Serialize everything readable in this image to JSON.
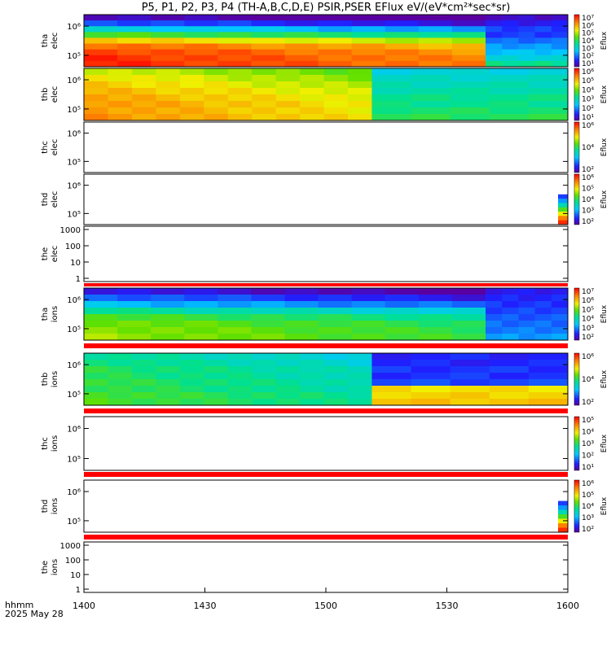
{
  "title": "P5, P1, P2, P3, P4 (TH-A,B,C,D,E) PSIR,PSER EFlux eV/(eV*cm²*sec*sr)",
  "bottom_label": {
    "line1": "hhmm",
    "line2": "2025 May 28"
  },
  "colors": {
    "red_bar": "#ff0000",
    "frame": "#000000"
  },
  "chart_data": {
    "type": "heatmap",
    "x_axis": {
      "range": [
        1400,
        1600
      ],
      "ticks": [
        "1400",
        "1430",
        "1500",
        "1530",
        "1600"
      ],
      "label": "hhmm"
    },
    "panels": [
      {
        "name": "tha-elec",
        "ylabel": [
          "tha",
          "elec"
        ],
        "yticks": [
          "10⁶",
          "10⁵"
        ],
        "colorbar": {
          "label": "Eflux",
          "ticks": [
            "10⁷",
            "10⁶",
            "10⁵",
            "10⁴",
            "10³",
            "10²",
            "10¹"
          ]
        },
        "red_bar": false,
        "rows": [
          0.05,
          0.18,
          0.35,
          0.55,
          0.75,
          0.88,
          0.93,
          0.95,
          0.96
        ],
        "x_breaks": [
          1566
        ],
        "after_break_rows": [
          0.05,
          0.1,
          0.15,
          0.15,
          0.2,
          0.25,
          0.3,
          0.35,
          0.45
        ]
      },
      {
        "name": "thb-elec",
        "ylabel": [
          "thb",
          "elec"
        ],
        "yticks": [
          "10⁶",
          "10⁵"
        ],
        "colorbar": {
          "label": "Eflux",
          "ticks": [
            "10⁶",
            "10⁵",
            "10⁴",
            "10³",
            "10²",
            "10¹"
          ]
        },
        "red_bar": false,
        "rows": [
          0.68,
          0.72,
          0.75,
          0.78,
          0.8,
          0.82,
          0.82,
          0.83
        ],
        "x_breaks": [
          1519
        ],
        "after_break_rows": [
          0.35,
          0.38,
          0.4,
          0.42,
          0.45,
          0.45,
          0.48,
          0.5
        ]
      },
      {
        "name": "thc-elec",
        "ylabel": [
          "thc",
          "elec"
        ],
        "yticks": [
          "10⁶",
          "10⁵"
        ],
        "colorbar": {
          "label": "Eflux",
          "ticks": [
            "10⁶",
            "10⁴",
            "10²"
          ]
        },
        "red_bar": false,
        "rows": []
      },
      {
        "name": "thd-elec",
        "ylabel": [
          "thd",
          "elec"
        ],
        "yticks": [
          "10⁶",
          "10⁵"
        ],
        "colorbar": {
          "label": "Eflux",
          "ticks": [
            "10⁶",
            "10⁵",
            "10⁴",
            "10³",
            "10²"
          ]
        },
        "red_bar": false,
        "rows": [],
        "edge_column": true
      },
      {
        "name": "the-elec",
        "ylabel": [
          "the",
          "elec"
        ],
        "yticks": [
          "1000",
          "100",
          "10",
          "1"
        ],
        "colorbar": null,
        "red_bar": true,
        "rows": []
      },
      {
        "name": "tha-ions",
        "ylabel": [
          "tha",
          "ions"
        ],
        "yticks": [
          "10⁶",
          "10⁵"
        ],
        "colorbar": {
          "label": "Eflux",
          "ticks": [
            "10⁷",
            "10⁶",
            "10⁵",
            "10⁴",
            "10³",
            "10²"
          ]
        },
        "red_bar": true,
        "rows": [
          0.1,
          0.2,
          0.3,
          0.45,
          0.55,
          0.6,
          0.62,
          0.63
        ],
        "x_breaks": [
          1566
        ],
        "after_break_rows": [
          0.1,
          0.12,
          0.14,
          0.16,
          0.18,
          0.2,
          0.22,
          0.25
        ]
      },
      {
        "name": "thb-ions",
        "ylabel": [
          "thb",
          "ions"
        ],
        "yticks": [
          "10⁶",
          "10⁵"
        ],
        "colorbar": {
          "label": "Eflux",
          "ticks": [
            "10⁶",
            "10⁴",
            "10²"
          ]
        },
        "red_bar": true,
        "rows": [
          0.45,
          0.47,
          0.5,
          0.5,
          0.52,
          0.52,
          0.55,
          0.55
        ],
        "x_breaks": [
          1519
        ],
        "after_break_rows": [
          0.12,
          0.12,
          0.14,
          0.14,
          0.16,
          0.72,
          0.74,
          0.76
        ]
      },
      {
        "name": "thc-ions",
        "ylabel": [
          "thc",
          "ions"
        ],
        "yticks": [
          "10⁶",
          "10⁵"
        ],
        "colorbar": {
          "label": "Eflux",
          "ticks": [
            "10⁵",
            "10⁴",
            "10³",
            "10²",
            "10¹"
          ]
        },
        "red_bar": true,
        "rows": []
      },
      {
        "name": "thd-ions",
        "ylabel": [
          "thd",
          "ions"
        ],
        "yticks": [
          "10⁶",
          "10⁵"
        ],
        "colorbar": {
          "label": "Eflux",
          "ticks": [
            "10⁶",
            "10⁵",
            "10⁴",
            "10³",
            "10²"
          ]
        },
        "red_bar": true,
        "rows": [],
        "edge_column": true
      },
      {
        "name": "the-ions",
        "ylabel": [
          "the",
          "ions"
        ],
        "yticks": [
          "1000",
          "100",
          "10",
          "1"
        ],
        "colorbar": null,
        "red_bar": false,
        "rows": []
      }
    ]
  }
}
